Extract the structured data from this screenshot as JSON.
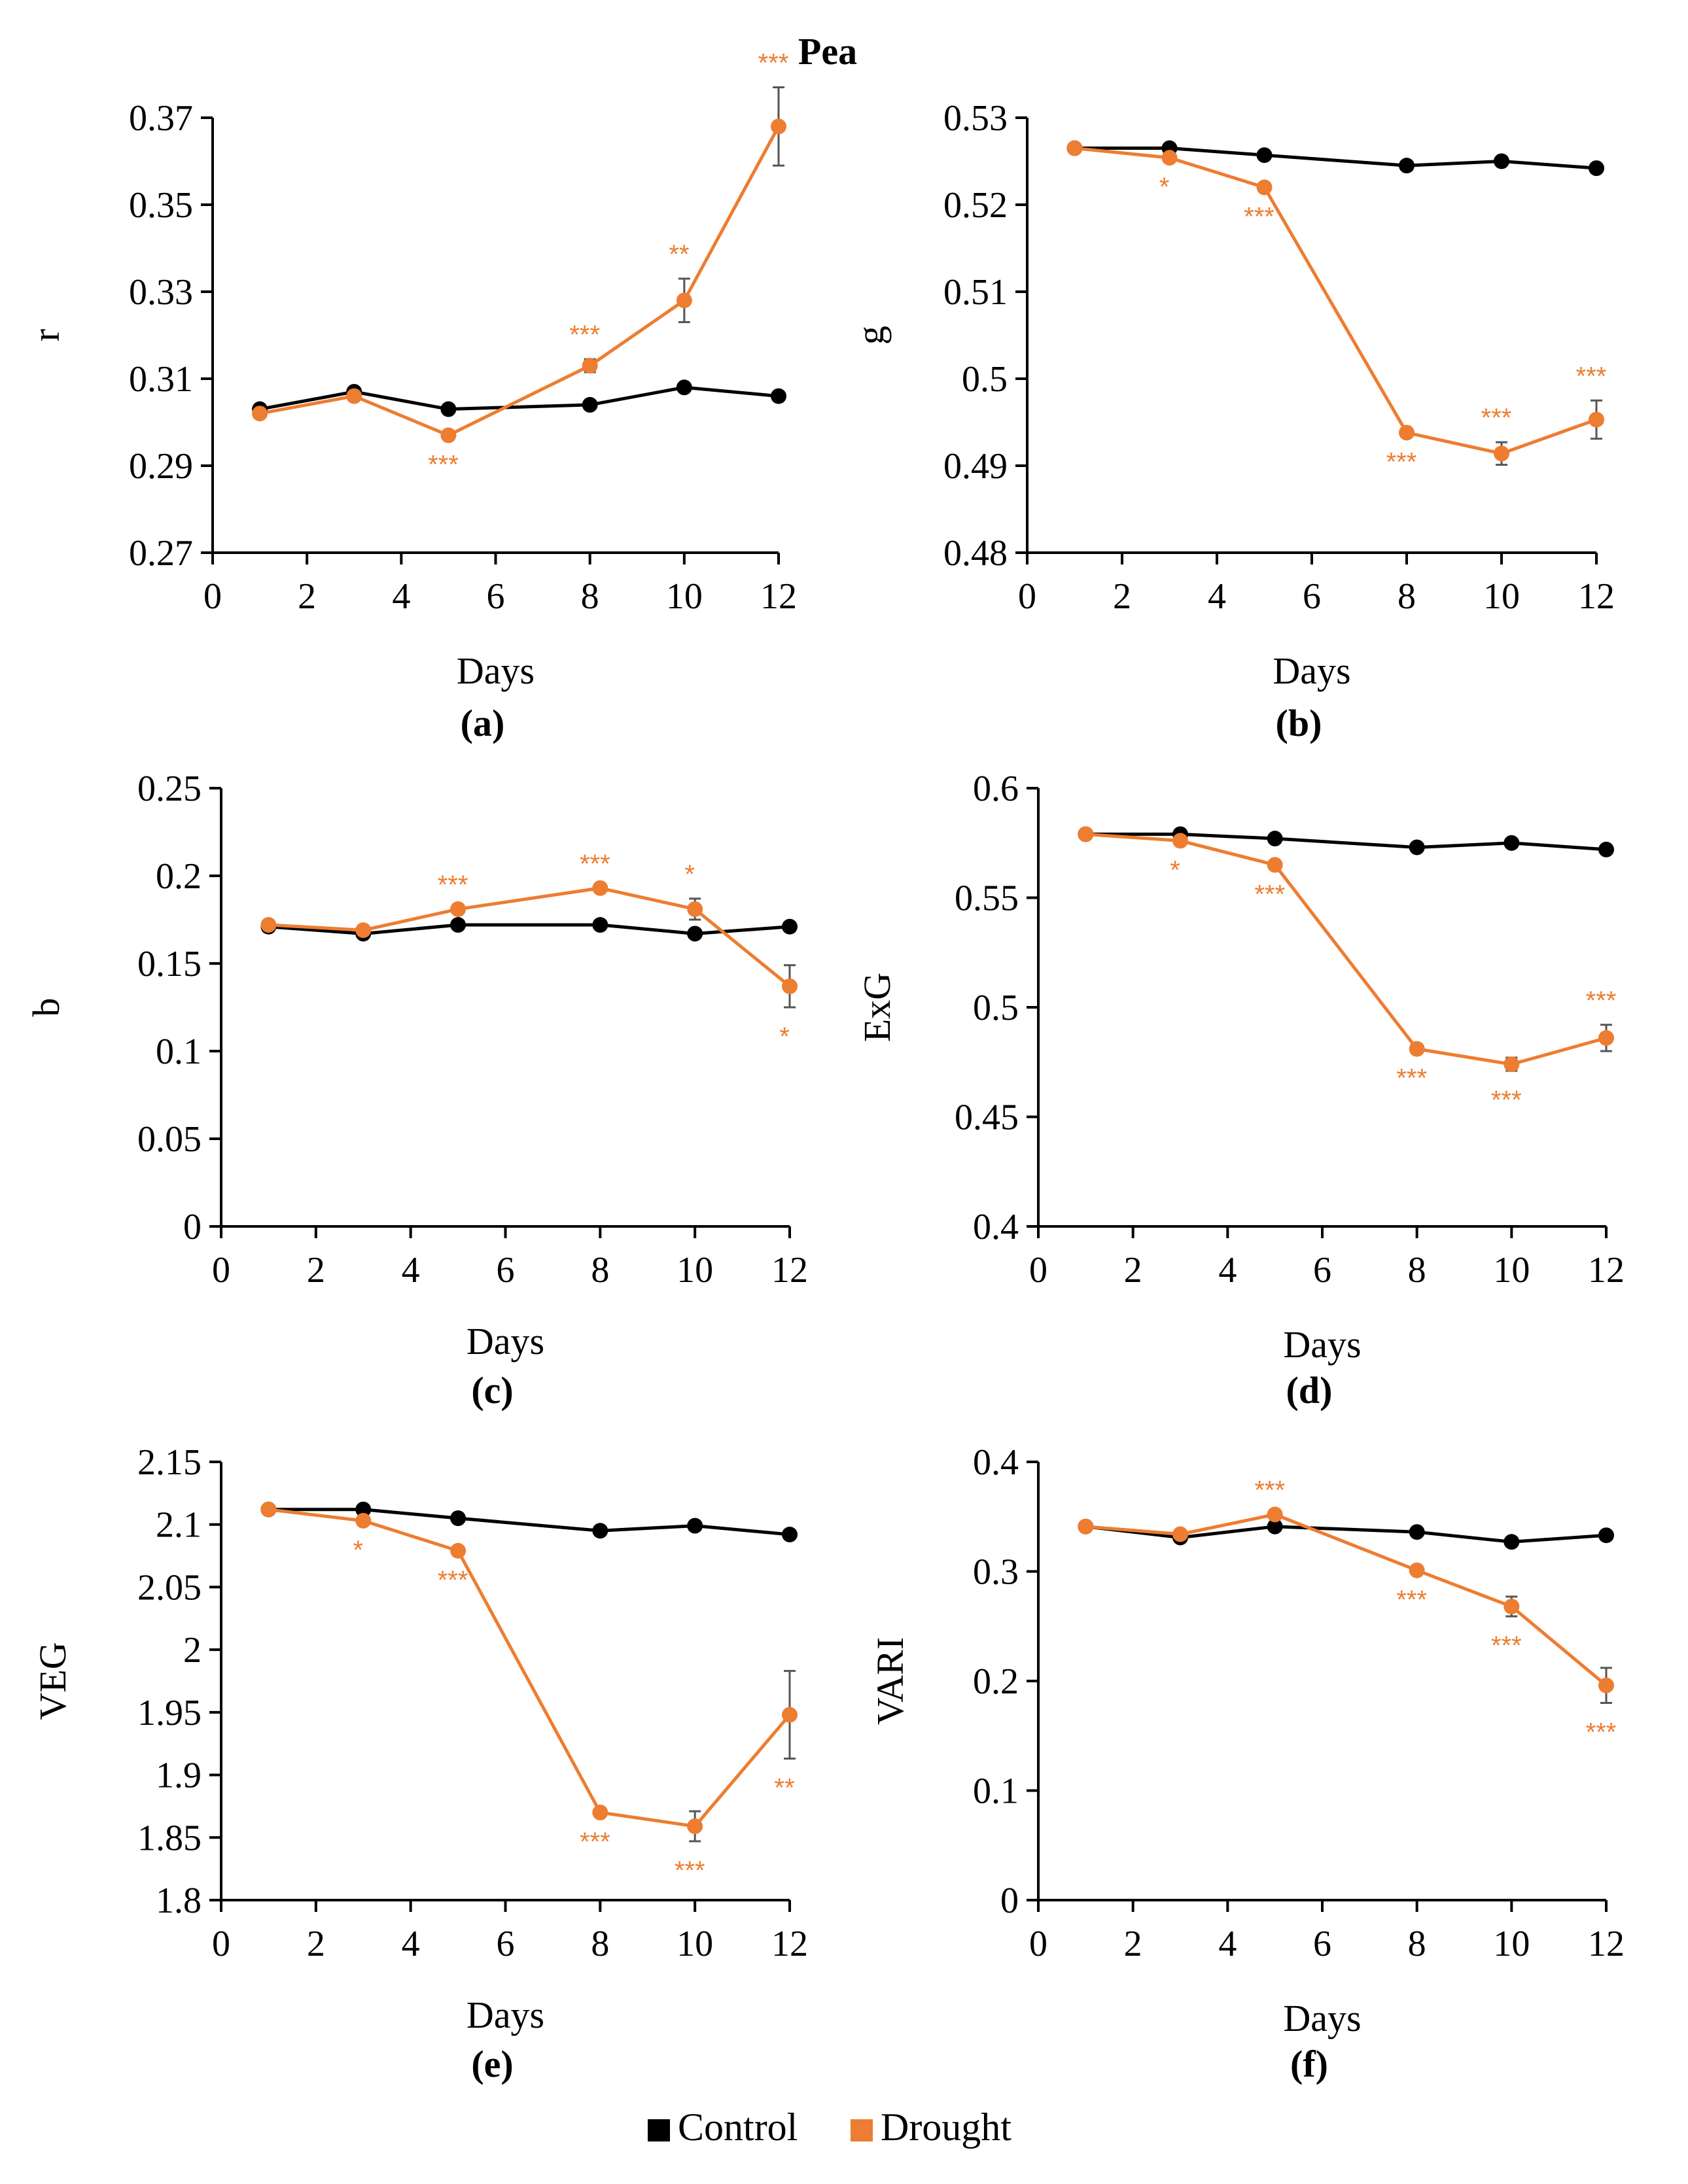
{
  "title": "Pea",
  "colors": {
    "control": "#000000",
    "drought": "#ed7d31",
    "errorbar": "#555555"
  },
  "legend": {
    "control_label": "Control",
    "drought_label": "Drought",
    "placement": "bottom-center"
  },
  "chart_data": [
    {
      "type": "line",
      "panel": "(a)",
      "xlabel": "Days",
      "ylabel": "r",
      "xlim": [
        0,
        12
      ],
      "xticks": [
        0,
        2,
        4,
        6,
        8,
        10,
        12
      ],
      "ylim": [
        0.27,
        0.37
      ],
      "yticks": [
        "0.27",
        "0.29",
        "0.31",
        "0.33",
        "0.35",
        "0.37"
      ],
      "x": [
        1,
        3,
        5,
        8,
        10,
        12
      ],
      "series": [
        {
          "name": "Control",
          "values": [
            0.303,
            0.307,
            0.303,
            0.304,
            0.308,
            0.306
          ]
        },
        {
          "name": "Drought",
          "values": [
            0.302,
            0.306,
            0.297,
            0.313,
            0.328,
            0.368
          ],
          "errors": [
            0,
            0,
            0,
            0.0015,
            0.005,
            0.009
          ]
        }
      ],
      "significance": [
        {
          "x": 5,
          "label": "***",
          "pos": "below"
        },
        {
          "x": 8,
          "label": "***",
          "pos": "above"
        },
        {
          "x": 10,
          "label": "**",
          "pos": "above"
        },
        {
          "x": 12,
          "label": "***",
          "pos": "above"
        }
      ]
    },
    {
      "type": "line",
      "panel": "(b)",
      "xlabel": "Days",
      "ylabel": "g",
      "xlim": [
        0,
        12
      ],
      "xticks": [
        0,
        2,
        4,
        6,
        8,
        10,
        12
      ],
      "ylim": [
        0.48,
        0.53
      ],
      "yticks": [
        "0.48",
        "0.49",
        "0.5",
        "0.51",
        "0.52",
        "0.53"
      ],
      "x": [
        1,
        3,
        5,
        8,
        10,
        12
      ],
      "series": [
        {
          "name": "Control",
          "values": [
            0.5265,
            0.5265,
            0.5257,
            0.5245,
            0.525,
            0.5242
          ]
        },
        {
          "name": "Drought",
          "values": [
            0.5265,
            0.5254,
            0.522,
            0.4938,
            0.4914,
            0.4953
          ],
          "errors": [
            0,
            0,
            0,
            0,
            0.0013,
            0.0022
          ]
        }
      ],
      "significance": [
        {
          "x": 3,
          "label": "*",
          "pos": "below"
        },
        {
          "x": 5,
          "label": "***",
          "pos": "below"
        },
        {
          "x": 8,
          "label": "***",
          "pos": "below"
        },
        {
          "x": 10,
          "label": "***",
          "pos": "above"
        },
        {
          "x": 12,
          "label": "***",
          "pos": "above"
        }
      ]
    },
    {
      "type": "line",
      "panel": "(c)",
      "xlabel": "Days",
      "ylabel": "b",
      "xlim": [
        0,
        12
      ],
      "xticks": [
        0,
        2,
        4,
        6,
        8,
        10,
        12
      ],
      "ylim": [
        0,
        0.25
      ],
      "yticks": [
        "0",
        "0.05",
        "0.1",
        "0.15",
        "0.2",
        "0.25"
      ],
      "x": [
        1,
        3,
        5,
        8,
        10,
        12
      ],
      "series": [
        {
          "name": "Control",
          "values": [
            0.171,
            0.167,
            0.172,
            0.172,
            0.167,
            0.171
          ]
        },
        {
          "name": "Drought",
          "values": [
            0.172,
            0.169,
            0.181,
            0.193,
            0.181,
            0.137
          ],
          "errors": [
            0,
            0,
            0,
            0,
            0.006,
            0.012
          ]
        }
      ],
      "significance": [
        {
          "x": 5,
          "label": "***",
          "pos": "above"
        },
        {
          "x": 8,
          "label": "***",
          "pos": "above"
        },
        {
          "x": 10,
          "label": "*",
          "pos": "above"
        },
        {
          "x": 12,
          "label": "*",
          "pos": "below"
        }
      ]
    },
    {
      "type": "line",
      "panel": "(d)",
      "xlabel": "Days",
      "ylabel": "ExG",
      "xlim": [
        0,
        12
      ],
      "xticks": [
        0,
        2,
        4,
        6,
        8,
        10,
        12
      ],
      "ylim": [
        0.4,
        0.6
      ],
      "yticks": [
        "0.4",
        "0.45",
        "0.5",
        "0.55",
        "0.6"
      ],
      "x": [
        1,
        3,
        5,
        8,
        10,
        12
      ],
      "series": [
        {
          "name": "Control",
          "values": [
            0.579,
            0.579,
            0.577,
            0.573,
            0.575,
            0.572
          ]
        },
        {
          "name": "Drought",
          "values": [
            0.579,
            0.576,
            0.565,
            0.481,
            0.474,
            0.486
          ],
          "errors": [
            0,
            0,
            0,
            0,
            0.003,
            0.006
          ]
        }
      ],
      "significance": [
        {
          "x": 3,
          "label": "*",
          "pos": "below"
        },
        {
          "x": 5,
          "label": "***",
          "pos": "below"
        },
        {
          "x": 8,
          "label": "***",
          "pos": "below"
        },
        {
          "x": 10,
          "label": "***",
          "pos": "below"
        },
        {
          "x": 12,
          "label": "***",
          "pos": "above"
        }
      ]
    },
    {
      "type": "line",
      "panel": "(e)",
      "xlabel": "Days",
      "ylabel": "VEG",
      "xlim": [
        0,
        12
      ],
      "xticks": [
        0,
        2,
        4,
        6,
        8,
        10,
        12
      ],
      "ylim": [
        1.8,
        2.15
      ],
      "yticks": [
        "1.8",
        "1.85",
        "1.9",
        "1.95",
        "2",
        "2.05",
        "2.1",
        "2.15"
      ],
      "x": [
        1,
        3,
        5,
        8,
        10,
        12
      ],
      "series": [
        {
          "name": "Control",
          "values": [
            2.112,
            2.112,
            2.105,
            2.095,
            2.099,
            2.092
          ]
        },
        {
          "name": "Drought",
          "values": [
            2.112,
            2.103,
            2.079,
            1.87,
            1.859,
            1.948
          ],
          "errors": [
            0,
            0,
            0,
            0,
            0.012,
            0.035
          ]
        }
      ],
      "significance": [
        {
          "x": 3,
          "label": "*",
          "pos": "below"
        },
        {
          "x": 5,
          "label": "***",
          "pos": "below"
        },
        {
          "x": 8,
          "label": "***",
          "pos": "below"
        },
        {
          "x": 10,
          "label": "***",
          "pos": "below"
        },
        {
          "x": 12,
          "label": "**",
          "pos": "below"
        }
      ]
    },
    {
      "type": "line",
      "panel": "(f)",
      "xlabel": "Days",
      "ylabel": "VARI",
      "xlim": [
        0,
        12
      ],
      "xticks": [
        0,
        2,
        4,
        6,
        8,
        10,
        12
      ],
      "ylim": [
        0,
        0.4
      ],
      "yticks": [
        "0",
        "0.1",
        "0.2",
        "0.3",
        "0.4"
      ],
      "x": [
        1,
        3,
        5,
        8,
        10,
        12
      ],
      "series": [
        {
          "name": "Control",
          "values": [
            0.341,
            0.331,
            0.341,
            0.336,
            0.327,
            0.333
          ]
        },
        {
          "name": "Drought",
          "values": [
            0.341,
            0.334,
            0.352,
            0.301,
            0.268,
            0.196
          ],
          "errors": [
            0,
            0,
            0,
            0,
            0.009,
            0.016
          ]
        }
      ],
      "significance": [
        {
          "x": 5,
          "label": "***",
          "pos": "above"
        },
        {
          "x": 8,
          "label": "***",
          "pos": "below"
        },
        {
          "x": 10,
          "label": "***",
          "pos": "below"
        },
        {
          "x": 12,
          "label": "***",
          "pos": "below"
        }
      ]
    }
  ]
}
